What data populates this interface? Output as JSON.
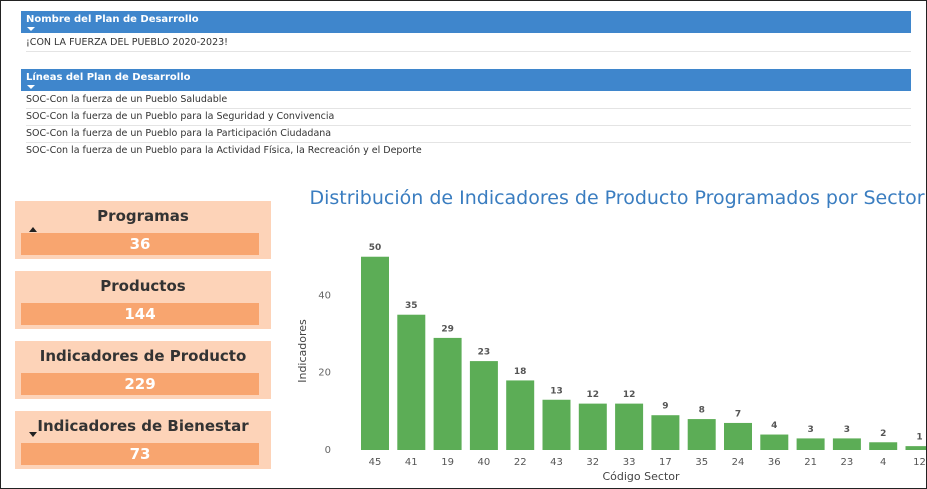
{
  "plan_name": {
    "header": "Nombre del Plan de Desarrollo",
    "value": "¡CON LA FUERZA DEL PUEBLO 2020-2023!"
  },
  "plan_lines": {
    "header": "Líneas del Plan de Desarrollo",
    "items": [
      "SOC-Con la fuerza de un Pueblo Saludable",
      "SOC-Con la fuerza de un Pueblo para la Seguridad y Convivencia",
      "SOC-Con la fuerza de un Pueblo para la Participación Ciudadana",
      "SOC-Con la fuerza de un Pueblo para la Actividad Física, la Recreación y el Deporte"
    ]
  },
  "kpis": [
    {
      "label": "Programas",
      "value": 36
    },
    {
      "label": "Productos",
      "value": 144
    },
    {
      "label": "Indicadores de Producto",
      "value": 229
    },
    {
      "label": "Indicadores de Bienestar",
      "value": 73
    }
  ],
  "chart_data": {
    "type": "bar",
    "title": "Distribución de Indicadores de Producto Programados por Sector",
    "x_label": "Código Sector",
    "y_label": "Indicadores",
    "categories": [
      "45",
      "41",
      "19",
      "40",
      "22",
      "43",
      "32",
      "33",
      "17",
      "35",
      "24",
      "36",
      "21",
      "23",
      "4",
      "12"
    ],
    "values": [
      50,
      35,
      29,
      23,
      18,
      13,
      12,
      12,
      9,
      8,
      7,
      4,
      3,
      3,
      2,
      1
    ],
    "color": "#5cad56",
    "ylim": [
      0,
      52
    ],
    "yticks": [
      0,
      20,
      40
    ],
    "grid": false
  }
}
